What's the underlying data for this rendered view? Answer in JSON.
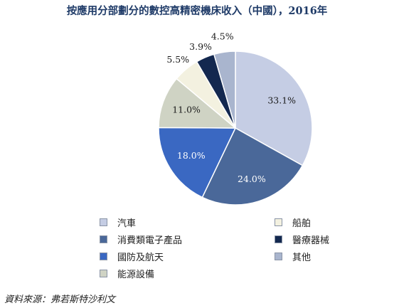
{
  "title": "按應用分部劃分的數控高精密機床收入（中國），2016年",
  "source": "資料來源：弗若斯特沙利文",
  "chart_data": {
    "type": "pie",
    "slices": [
      {
        "label": "汽車",
        "value": 33.1,
        "label_text": "33.1%",
        "color": "#c5cde4"
      },
      {
        "label": "消費類電子產品",
        "value": 24.0,
        "label_text": "24.0%",
        "color": "#4a6899"
      },
      {
        "label": "國防及航天",
        "value": 18.0,
        "label_text": "18.0%",
        "color": "#3a68c2"
      },
      {
        "label": "能源設備",
        "value": 11.0,
        "label_text": "11.0%",
        "color": "#cfd3c4"
      },
      {
        "label": "船舶",
        "value": 5.5,
        "label_text": "5.5%",
        "color": "#f3f1e0"
      },
      {
        "label": "醫療器械",
        "value": 3.9,
        "label_text": "3.9%",
        "color": "#13284f"
      },
      {
        "label": "其他",
        "value": 4.5,
        "label_text": "4.5%",
        "color": "#a9b5ce"
      }
    ],
    "start_angle": "12 o'clock",
    "direction": "clockwise"
  },
  "legend": {
    "left_column": [
      "汽車",
      "消費類電子產品",
      "國防及航天",
      "能源設備"
    ],
    "right_column": [
      "船舶",
      "醫療器械",
      "其他"
    ]
  }
}
